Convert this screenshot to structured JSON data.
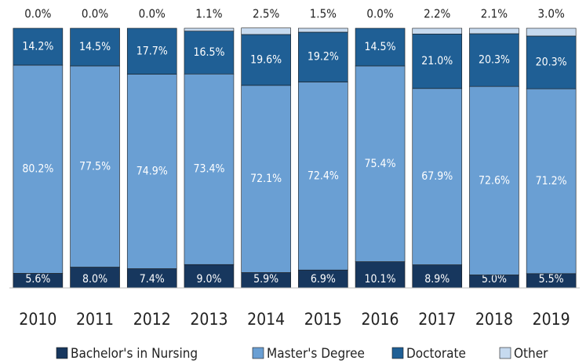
{
  "chart_data": {
    "type": "stacked-bar",
    "categories": [
      "2010",
      "2011",
      "2012",
      "2013",
      "2014",
      "2015",
      "2016",
      "2017",
      "2018",
      "2019"
    ],
    "series": [
      {
        "name": "Bachelor's in Nursing",
        "color": "#17375e",
        "values": [
          5.6,
          8.0,
          7.4,
          9.0,
          5.9,
          6.9,
          10.1,
          8.9,
          5.0,
          5.5
        ],
        "value_labels": [
          "5.6%",
          "8.0%",
          "7.4%",
          "9.0%",
          "5.9%",
          "6.9%",
          "10.1%",
          "8.9%",
          "5.0%",
          "5.5%"
        ]
      },
      {
        "name": "Master's Degree",
        "color": "#6a9fd3",
        "values": [
          80.2,
          77.5,
          74.9,
          73.4,
          72.1,
          72.4,
          75.4,
          67.9,
          72.6,
          71.2
        ],
        "value_labels": [
          "80.2%",
          "77.5%",
          "74.9%",
          "73.4%",
          "72.1%",
          "72.4%",
          "75.4%",
          "67.9%",
          "72.6%",
          "71.2%"
        ]
      },
      {
        "name": "Doctorate",
        "color": "#1f5f95",
        "values": [
          14.2,
          14.5,
          17.7,
          16.5,
          19.6,
          19.2,
          14.5,
          21.0,
          20.3,
          20.3
        ],
        "value_labels": [
          "14.2%",
          "14.5%",
          "17.7%",
          "16.5%",
          "19.6%",
          "19.2%",
          "14.5%",
          "21.0%",
          "20.3%",
          "20.3%"
        ]
      },
      {
        "name": "Other",
        "color": "#c6daef",
        "values": [
          0.0,
          0.0,
          0.0,
          1.1,
          2.5,
          1.5,
          0.0,
          2.2,
          2.1,
          3.0
        ],
        "value_labels": [
          "0.0%",
          "0.0%",
          "0.0%",
          "1.1%",
          "2.5%",
          "1.5%",
          "0.0%",
          "2.2%",
          "2.1%",
          "3.0%"
        ]
      }
    ],
    "ylim": [
      0,
      100
    ],
    "legend": "bottom"
  }
}
